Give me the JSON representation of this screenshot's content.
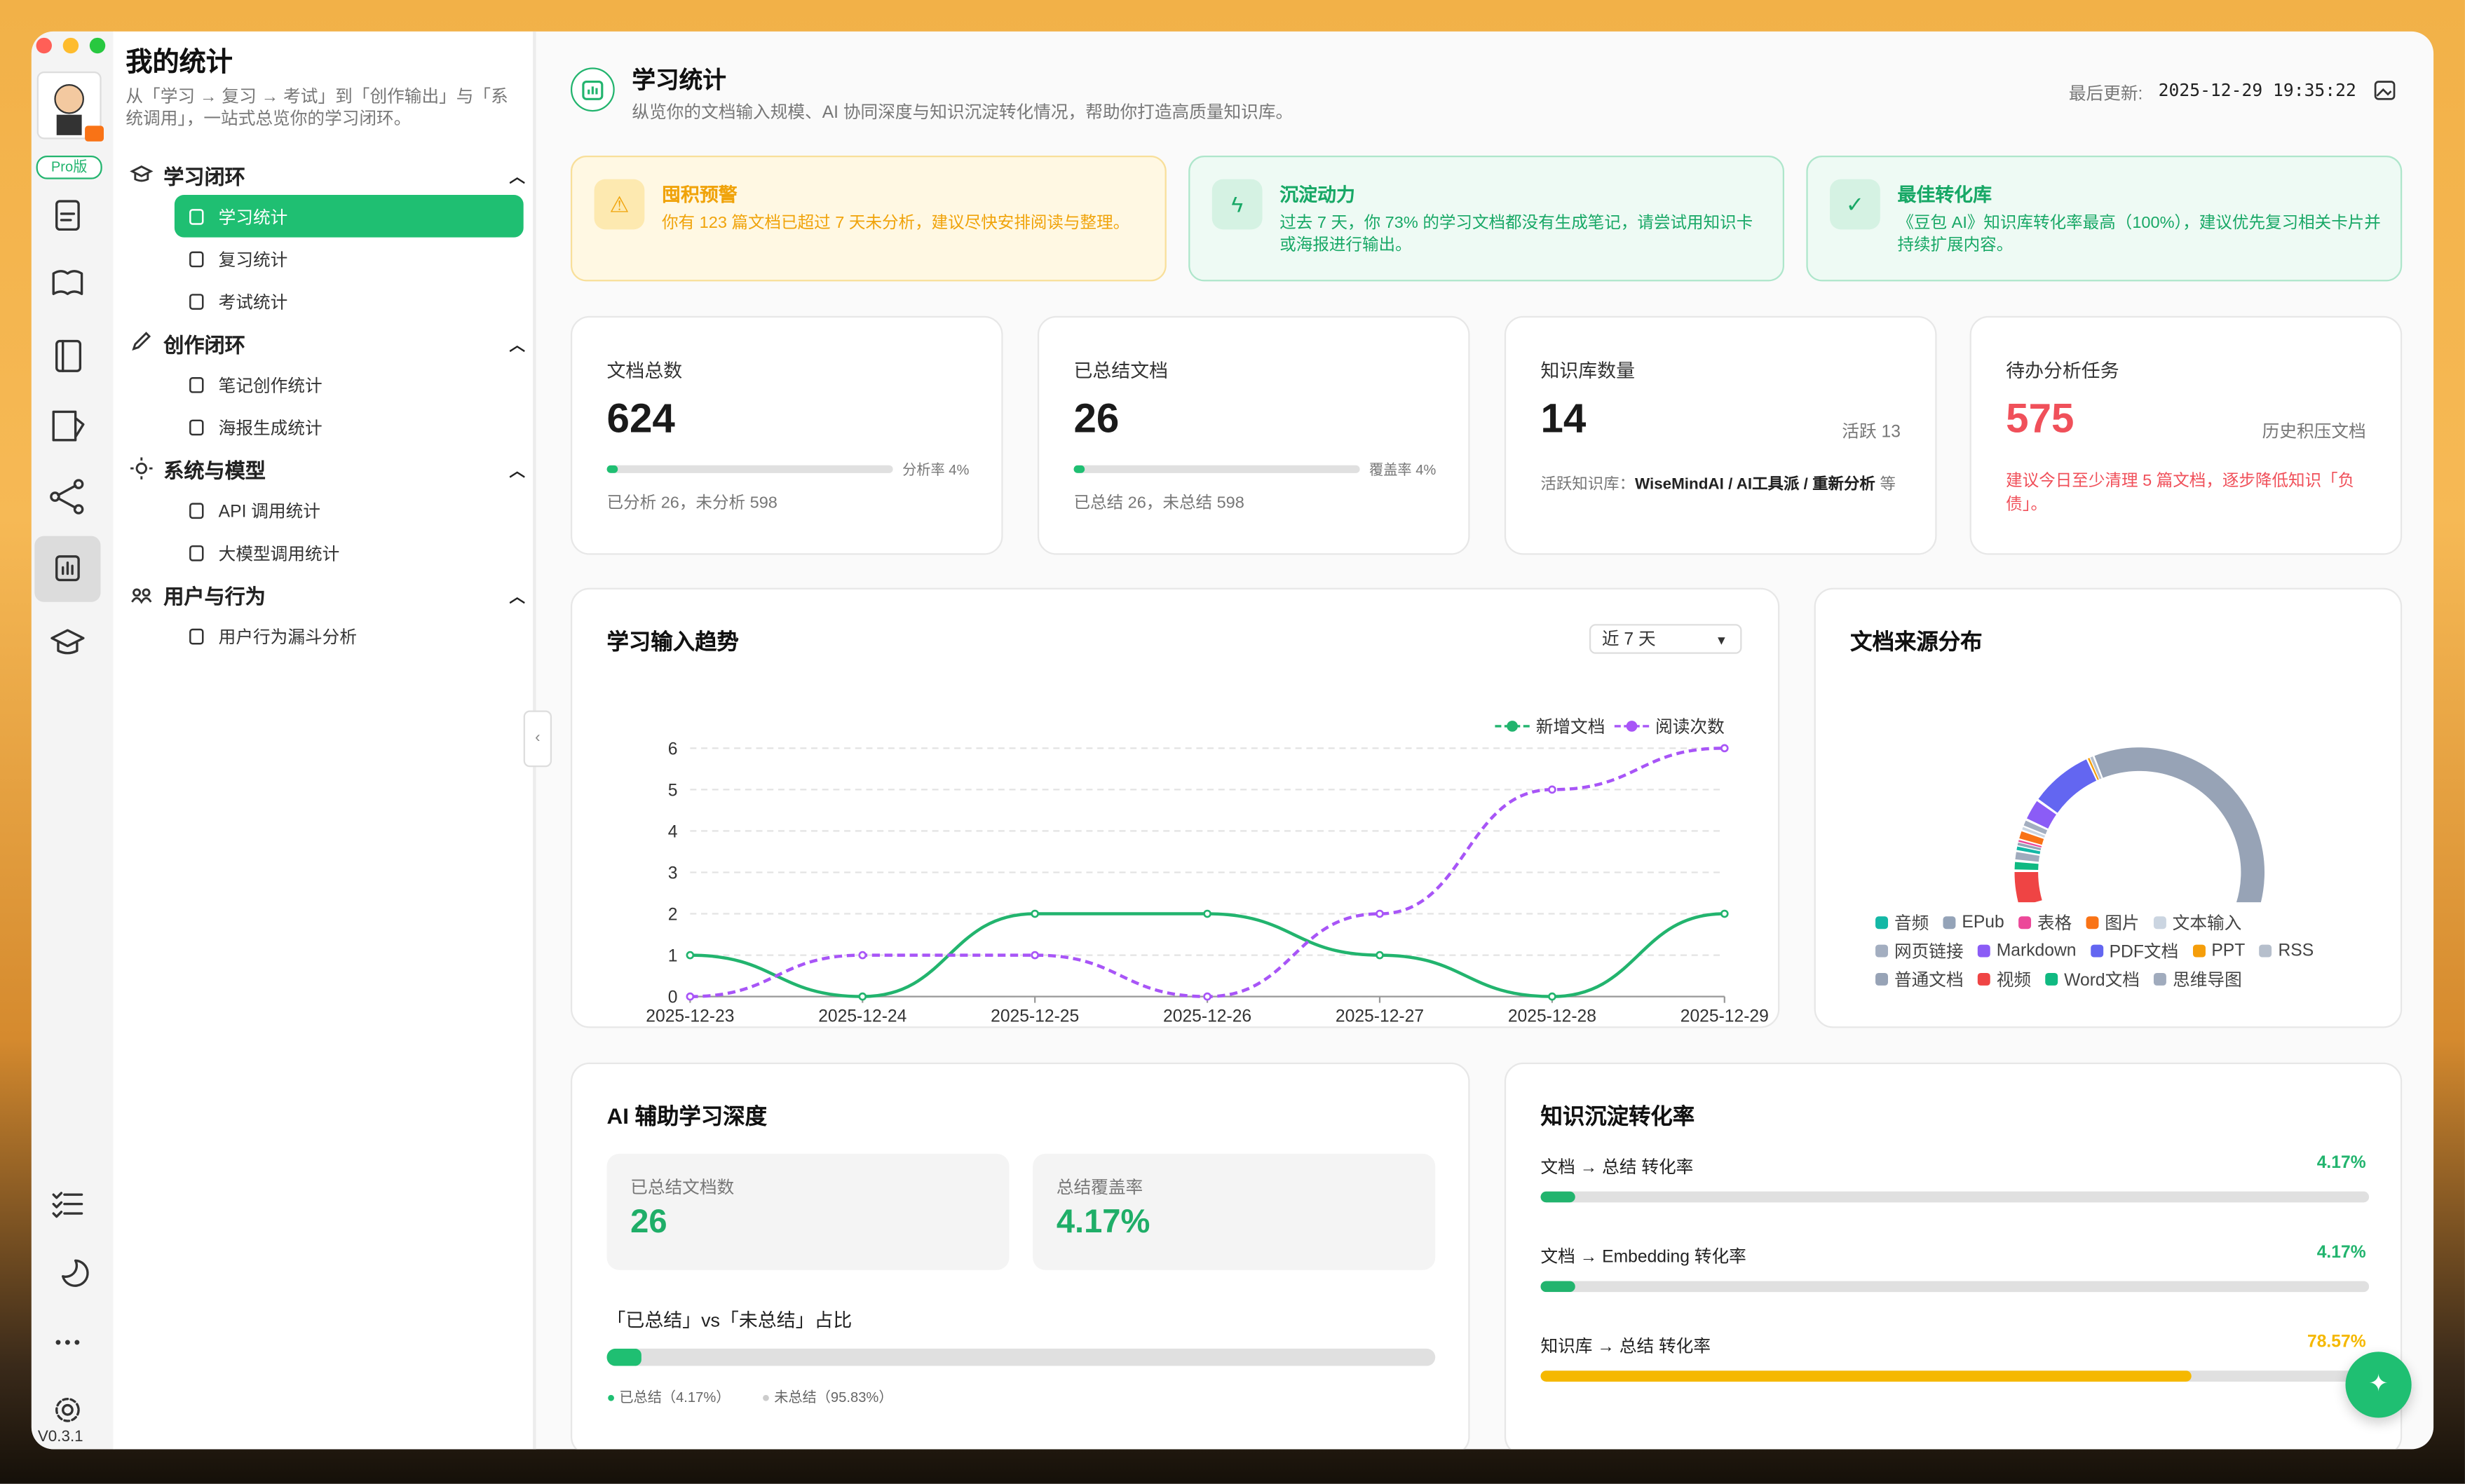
{
  "window": {
    "version": "V0.3.1",
    "badge": "Pro版"
  },
  "nav": {
    "title": "我的统计",
    "subtitle": "从「学习 → 复习 → 考试」到「创作输出」与「系统调用」，一站式总览你的学习闭环。",
    "groups": [
      {
        "label": "学习闭环",
        "items": [
          "学习统计",
          "复习统计",
          "考试统计"
        ]
      },
      {
        "label": "创作闭环",
        "items": [
          "笔记创作统计",
          "海报生成统计"
        ]
      },
      {
        "label": "系统与模型",
        "items": [
          "API 调用统计",
          "大模型调用统计"
        ]
      },
      {
        "label": "用户与行为",
        "items": [
          "用户行为漏斗分析"
        ]
      }
    ]
  },
  "header": {
    "title": "学习统计",
    "subtitle": "纵览你的文档输入规模、AI 协同深度与知识沉淀转化情况，帮助你打造高质量知识库。",
    "updated_label": "最后更新:",
    "updated": "2025-12-29 19:35:22"
  },
  "alerts": [
    {
      "title": "囤积预警",
      "text": "你有 123 篇文档已超过 7 天未分析，建议尽快安排阅读与整理。"
    },
    {
      "title": "沉淀动力",
      "text": "过去 7 天，你 73% 的学习文档都没有生成笔记，请尝试用知识卡或海报进行输出。"
    },
    {
      "title": "最佳转化库",
      "text": "《豆包 AI》知识库转化率最高（100%），建议优先复习相关卡片并持续扩展内容。"
    }
  ],
  "stats": [
    {
      "label": "文档总数",
      "value": 624,
      "side": "分析率 4%",
      "progress": 4,
      "footer": "已分析 26，未分析 598"
    },
    {
      "label": "已总结文档",
      "value": 26,
      "side": "覆盖率 4%",
      "progress": 4,
      "footer": "已总结 26，未总结 598"
    },
    {
      "label": "知识库数量",
      "value": 14,
      "side": "活跃 13",
      "footer_label": "活跃知识库：",
      "footer_items": "WiseMindAI / AI工具派 / 重新分析",
      "footer_suffix": "等"
    },
    {
      "label": "待办分析任务",
      "value": 575,
      "side": "历史积压文档",
      "footer": "建议今日至少清理 5 篇文档，逐步降低知识「负债」。"
    }
  ],
  "chart_data": [
    {
      "type": "line",
      "title": "学习输入趋势",
      "control": "近 7 天",
      "categories": [
        "2025-12-23",
        "2025-12-24",
        "2025-12-25",
        "2025-12-26",
        "2025-12-27",
        "2025-12-28",
        "2025-12-29"
      ],
      "series": [
        {
          "name": "新增文档",
          "color": "#22b46e",
          "values": [
            1,
            0,
            2,
            2,
            1,
            0,
            2
          ]
        },
        {
          "name": "阅读次数",
          "color": "#a855f7",
          "dashed": true,
          "values": [
            0,
            1,
            1,
            0,
            2,
            5,
            6
          ]
        }
      ],
      "ylim": [
        0,
        6
      ],
      "yticks": [
        0,
        1,
        2,
        3,
        4,
        5,
        6
      ],
      "grid": true
    },
    {
      "type": "pie",
      "title": "文档来源分布",
      "categories": [
        "音频",
        "EPub",
        "表格",
        "图片",
        "文本输入",
        "网页链接",
        "Markdown",
        "PDF文档",
        "PPT",
        "RSS",
        "普通文档",
        "视频",
        "Word文档",
        "思维导图"
      ],
      "values": [
        4,
        3,
        2,
        8,
        3,
        6,
        18,
        52,
        2,
        3,
        477,
        30,
        8,
        8
      ],
      "colors": [
        "#14b8a6",
        "#94a3b8",
        "#ec4899",
        "#f97316",
        "#cbd5e1",
        "#a3aec0",
        "#8b5cf6",
        "#6366f1",
        "#f59e0b",
        "#b6bfcc",
        "#97a3b6",
        "#ef4444",
        "#10b981",
        "#a0abbd"
      ]
    }
  ],
  "depth": {
    "title": "AI 辅助学习深度",
    "boxes": [
      {
        "label": "已总结文档数",
        "value": "26"
      },
      {
        "label": "总结覆盖率",
        "value": "4.17%"
      }
    ],
    "ratio_title": "「已总结」vs「未总结」占比",
    "ratio": 4.17,
    "legend": [
      "已总结（4.17%）",
      "未总结（95.83%）"
    ]
  },
  "conversion": {
    "title": "知识沉淀转化率",
    "rows": [
      {
        "label": "文档 → 总结 转化率",
        "value": 4.17,
        "value_label": "4.17%",
        "color": "#22b46e"
      },
      {
        "label": "文档 → Embedding 转化率",
        "value": 4.17,
        "value_label": "4.17%",
        "color": "#22b46e"
      },
      {
        "label": "知识库 → 总结 转化率",
        "value": 78.57,
        "value_label": "78.57%",
        "color": "#f5b800"
      }
    ]
  }
}
